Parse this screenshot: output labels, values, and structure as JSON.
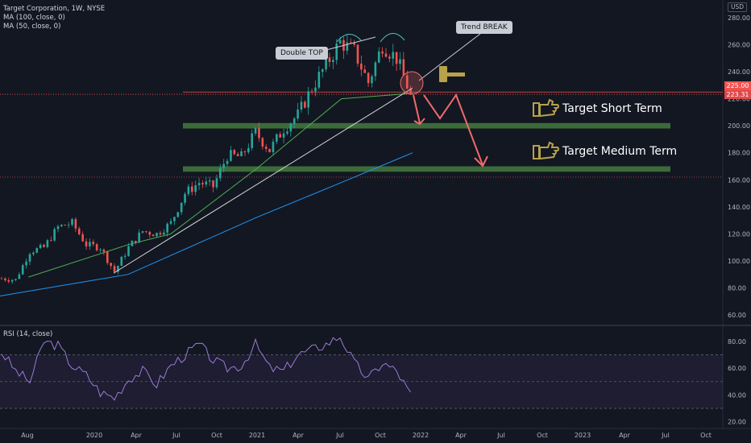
{
  "header": {
    "symbol_line": "Target Corporation, 1W, NYSE",
    "ma100": "MA (100, close, 0)",
    "ma50": "MA (50, close, 0)",
    "currency": "USD"
  },
  "rsi_pane": {
    "label": "RSI (14, close)"
  },
  "annotations": {
    "double_top": "Double TOP",
    "trend_break": "Trend BREAK",
    "target_short": "Target Short Term",
    "target_medium": "Target Medium Term"
  },
  "price_tags": {
    "current": "225.00",
    "last": "223.31"
  },
  "colors": {
    "up": "#26a69a",
    "down": "#ef5350",
    "ma50": "#4caf50",
    "ma100": "#2196f3",
    "zone": "#3c6b3a",
    "arrow": "#f06a6a",
    "rsi": "#9a7bd6",
    "thumb": "#b8a24a"
  },
  "chart_data": [
    {
      "type": "candlestick",
      "title": "Target Corporation, 1W, NYSE",
      "y_unit": "USD",
      "ylim": [
        57,
        292
      ],
      "y_ticks": [
        60,
        80,
        100,
        120,
        140,
        160,
        180,
        200,
        220,
        240,
        260,
        280
      ],
      "x_ticks": [
        "Aug",
        "2020",
        "Apr",
        "Jul",
        "Oct",
        "2021",
        "Apr",
        "Jul",
        "Oct",
        "2022",
        "Apr",
        "Jul",
        "Oct",
        "2023",
        "Apr",
        "Jul",
        "Oct"
      ],
      "grid": false,
      "approx_weekly_close": [
        {
          "period": "Jul 2019",
          "close": 87
        },
        {
          "period": "Aug 2019",
          "close": 86
        },
        {
          "period": "Sep 2019",
          "close": 107
        },
        {
          "period": "Oct 2019",
          "close": 110
        },
        {
          "period": "Nov 2019",
          "close": 125
        },
        {
          "period": "Dec 2019",
          "close": 128
        },
        {
          "period": "Jan 2020",
          "close": 112
        },
        {
          "period": "Feb 2020",
          "close": 110
        },
        {
          "period": "Mar 2020",
          "close": 92
        },
        {
          "period": "Apr 2020",
          "close": 110
        },
        {
          "period": "May 2020",
          "close": 122
        },
        {
          "period": "Jun 2020",
          "close": 120
        },
        {
          "period": "Jul 2020",
          "close": 128
        },
        {
          "period": "Aug 2020",
          "close": 150
        },
        {
          "period": "Sep 2020",
          "close": 158
        },
        {
          "period": "Oct 2020",
          "close": 155
        },
        {
          "period": "Nov 2020",
          "close": 178
        },
        {
          "period": "Dec 2020",
          "close": 177
        },
        {
          "period": "Jan 2021",
          "close": 195
        },
        {
          "period": "Feb 2021",
          "close": 182
        },
        {
          "period": "Mar 2021",
          "close": 198
        },
        {
          "period": "Apr 2021",
          "close": 208
        },
        {
          "period": "May 2021",
          "close": 228
        },
        {
          "period": "Jun 2021",
          "close": 245
        },
        {
          "period": "Jul 2021",
          "close": 262
        },
        {
          "period": "Aug 2021",
          "close": 255
        },
        {
          "period": "Sep 2021",
          "close": 232
        },
        {
          "period": "Oct 2021",
          "close": 260
        },
        {
          "period": "Nov 2021",
          "close": 250
        },
        {
          "period": "Dec 2021",
          "close": 223
        }
      ],
      "ma50_approx": [
        {
          "period": "Sep 2019",
          "value": 88
        },
        {
          "period": "Apr 2020",
          "value": 112
        },
        {
          "period": "Jul 2020",
          "value": 120
        },
        {
          "period": "Jan 2021",
          "value": 168
        },
        {
          "period": "Jul 2021",
          "value": 220
        },
        {
          "period": "Dec 2021",
          "value": 224
        }
      ],
      "ma100_approx": [
        {
          "period": "Jul 2019",
          "value": 74
        },
        {
          "period": "Apr 2020",
          "value": 90
        },
        {
          "period": "Jul 2020",
          "value": 104
        },
        {
          "period": "Jan 2021",
          "value": 132
        },
        {
          "period": "Jul 2021",
          "value": 158
        },
        {
          "period": "Dec 2021",
          "value": 180
        }
      ],
      "horizontal_levels": [
        225.0,
        223.31,
        162
      ],
      "target_zones": [
        {
          "label": "Target Short Term",
          "low": 198,
          "high": 202
        },
        {
          "label": "Target Medium Term",
          "low": 166,
          "high": 170
        }
      ],
      "trendline": {
        "from": {
          "period": "Mar 2020",
          "value": 91
        },
        "to": {
          "period": "Dec 2021",
          "value": 228
        }
      }
    },
    {
      "type": "line",
      "title": "RSI (14, close)",
      "ylim": [
        20,
        88
      ],
      "y_ticks": [
        20,
        40,
        60,
        80
      ],
      "bands": [
        30,
        50,
        70
      ],
      "series": [
        {
          "name": "RSI (14, close)",
          "values": [
            72,
            58,
            50,
            80,
            77,
            62,
            55,
            42,
            38,
            52,
            58,
            48,
            62,
            70,
            78,
            66,
            60,
            62,
            78,
            60,
            58,
            70,
            74,
            78,
            84,
            64,
            52,
            64,
            58,
            40
          ]
        }
      ]
    }
  ]
}
